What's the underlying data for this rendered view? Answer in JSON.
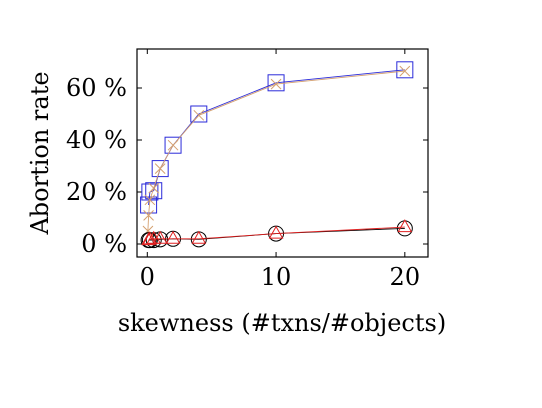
{
  "chart_data": {
    "type": "line",
    "xlabel": "skewness (#txns/#objects)",
    "ylabel": "Abortion rate",
    "xlim": [
      -0.8,
      21.8
    ],
    "ylim": [
      -5,
      75
    ],
    "x_ticks": [
      0,
      10,
      20
    ],
    "x_tick_labels": [
      "0",
      "10",
      "20"
    ],
    "y_ticks": [
      0,
      20,
      40,
      60
    ],
    "y_tick_labels": [
      "0 %",
      "20 %",
      "40 %",
      "60 %"
    ],
    "grid": false,
    "series": [
      {
        "marker": "square",
        "color": "#2a2ad9",
        "x": [
          0.1,
          0.2,
          0.5,
          1,
          2,
          4,
          10,
          20
        ],
        "y": [
          15,
          20,
          20.5,
          29,
          38,
          50,
          62,
          67
        ]
      },
      {
        "marker": "cross",
        "color": "#d4a070",
        "x": [
          0.05,
          0.1,
          0.2,
          0.5,
          1,
          2,
          4,
          10,
          20
        ],
        "y": [
          5,
          11,
          17,
          21.5,
          29,
          38,
          49.5,
          61.5,
          66.5
        ]
      },
      {
        "marker": "circle",
        "color": "#000000",
        "x": [
          0.1,
          0.2,
          0.5,
          1,
          2,
          4,
          10,
          20
        ],
        "y": [
          1.5,
          1.5,
          1.5,
          1.8,
          2,
          1.8,
          4,
          6
        ]
      },
      {
        "marker": "triangle",
        "color": "#e02020",
        "x": [
          0.1,
          0.2,
          0.5,
          1,
          2,
          4,
          10,
          20
        ],
        "y": [
          1.5,
          1.8,
          2,
          2,
          2,
          2,
          4,
          6.5
        ]
      }
    ]
  }
}
